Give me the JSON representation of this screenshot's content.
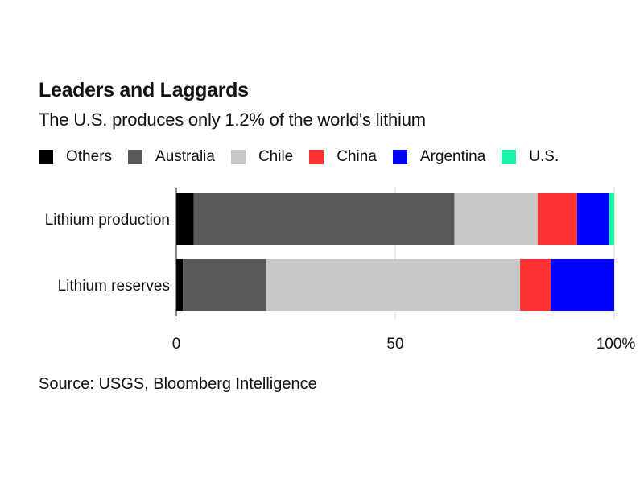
{
  "title": "Leaders and Laggards",
  "subtitle": "The U.S. produces only 1.2% of the world's lithium",
  "source": "Source: USGS, Bloomberg Intelligence",
  "chart_data": {
    "type": "bar",
    "orientation": "horizontal",
    "stacked": true,
    "categories": [
      "Lithium production",
      "Lithium reserves"
    ],
    "series": [
      {
        "name": "Others",
        "color": "#000000",
        "values": [
          4,
          1.5
        ]
      },
      {
        "name": "Australia",
        "color": "#595959",
        "values": [
          59.5,
          19
        ]
      },
      {
        "name": "Chile",
        "color": "#c8c8c8",
        "values": [
          19,
          58
        ]
      },
      {
        "name": "China",
        "color": "#ff3333",
        "values": [
          9,
          7
        ]
      },
      {
        "name": "Argentina",
        "color": "#0000ff",
        "values": [
          7.3,
          14.5
        ]
      },
      {
        "name": "U.S.",
        "color": "#19f5a8",
        "values": [
          1.2,
          0
        ]
      }
    ],
    "xlim": [
      0,
      100
    ],
    "xticks": [
      {
        "value": 0,
        "label": "0"
      },
      {
        "value": 50,
        "label": "50"
      },
      {
        "value": 100,
        "label": "100%"
      }
    ],
    "grid": true,
    "legend_position": "top-left"
  }
}
